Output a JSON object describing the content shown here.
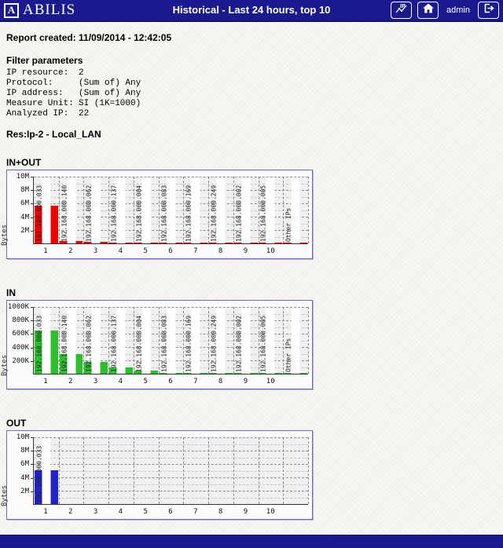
{
  "header": {
    "logo_letter": "A",
    "logo_text": "ABILIS",
    "title": "Historical - Last 24 hours, top 10",
    "user": "admin",
    "bg_color": "#1a1a8e",
    "icons": [
      "ip-statistics-icon",
      "home-icon",
      "logout-icon"
    ]
  },
  "report_created": "Report created: 11/09/2014 - 12:42:05",
  "filters": {
    "heading": "Filter parameters",
    "rows": [
      {
        "label": "IP resource:",
        "value": "2"
      },
      {
        "label": "Protocol:",
        "value": "(Sum of) Any"
      },
      {
        "label": "IP address:",
        "value": "(Sum of) Any"
      },
      {
        "label": "Measure Unit:",
        "value": "SI (1K=1000)"
      },
      {
        "label": "Analyzed IP:",
        "value": "22"
      }
    ]
  },
  "resource_heading": "Res:Ip-2 - Local_LAN",
  "chart_data": [
    {
      "type": "bar",
      "title": "IN+OUT",
      "xlabel": "",
      "ylabel": "Bytes",
      "ylim": [
        0,
        10000000
      ],
      "grid": true,
      "legend": false,
      "bar_color": "#ee0000",
      "label_bands": "all",
      "yticks": [
        {
          "label": "10M",
          "value": 10000000
        },
        {
          "label": "8M",
          "value": 8000000
        },
        {
          "label": "6M",
          "value": 6000000
        },
        {
          "label": "4M",
          "value": 4000000
        },
        {
          "label": "2M",
          "value": 2000000
        }
      ],
      "xticks": [
        "1",
        "2",
        "3",
        "4",
        "5",
        "6",
        "7",
        "8",
        "9",
        "10",
        ""
      ],
      "categories": [
        "192.168.000.033",
        "192.168.000.140",
        "192.168.000.062",
        "192.168.000.137",
        "192.168.000.004",
        "192.168.000.083",
        "192.168.000.169",
        "192.168.000.249",
        "192.168.000.002",
        "192.168.000.005",
        "Other IPs"
      ],
      "values": [
        5700000,
        300000,
        200000,
        100000,
        50000,
        15000,
        15000,
        15000,
        15000,
        15000,
        15000
      ]
    },
    {
      "type": "bar",
      "title": "IN",
      "xlabel": "",
      "ylabel": "Bytes",
      "ylim": [
        0,
        1000000
      ],
      "grid": true,
      "legend": false,
      "bar_color": "#2cbe2c",
      "label_bands": "all",
      "yticks": [
        {
          "label": "1000K",
          "value": 1000000
        },
        {
          "label": "800K",
          "value": 800000
        },
        {
          "label": "600K",
          "value": 600000
        },
        {
          "label": "400K",
          "value": 400000
        },
        {
          "label": "200K",
          "value": 200000
        }
      ],
      "xticks": [
        "1",
        "2",
        "3",
        "4",
        "5",
        "6",
        "7",
        "8",
        "9",
        "10",
        ""
      ],
      "categories": [
        "192.168.000.033",
        "192.168.000.140",
        "192.168.000.062",
        "192.168.000.137",
        "192.168.000.004",
        "192.168.000.083",
        "192.168.000.169",
        "192.168.000.249",
        "192.168.000.002",
        "192.168.000.005",
        "Other IPs"
      ],
      "values": [
        650000,
        300000,
        180000,
        90000,
        45000,
        10000,
        10000,
        10000,
        10000,
        10000,
        10000
      ]
    },
    {
      "type": "bar",
      "title": "OUT",
      "xlabel": "",
      "ylabel": "Bytes",
      "ylim": [
        0,
        10000000
      ],
      "grid": true,
      "legend": false,
      "bar_color": "#2222cc",
      "label_bands": "first",
      "yticks": [
        {
          "label": "10M",
          "value": 10000000
        },
        {
          "label": "8M",
          "value": 8000000
        },
        {
          "label": "6M",
          "value": 6000000
        },
        {
          "label": "4M",
          "value": 4000000
        },
        {
          "label": "2M",
          "value": 2000000
        }
      ],
      "xticks": [
        "1",
        "2",
        "3",
        "4",
        "5",
        "6",
        "7",
        "8",
        "9",
        "10",
        ""
      ],
      "categories": [
        "192.168.000.033",
        "192.168.000.140",
        "192.168.000.062",
        "192.168.000.137",
        "192.168.000.004",
        "192.168.000.083",
        "192.168.000.169",
        "192.168.000.249",
        "192.168.000.002",
        "192.168.000.005",
        "Other IPs"
      ],
      "values": [
        5050000,
        0,
        0,
        0,
        0,
        0,
        0,
        0,
        0,
        0,
        0
      ]
    }
  ]
}
